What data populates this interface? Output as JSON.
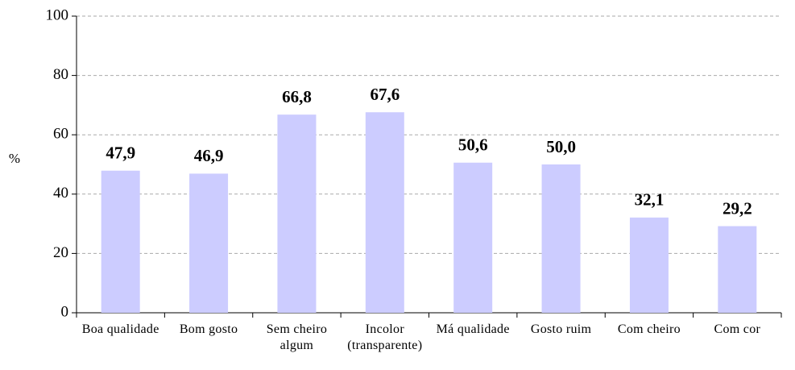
{
  "chart_data": {
    "type": "bar",
    "y_label": "%",
    "categories": [
      "Boa qualidade",
      "Bom gosto",
      "Sem cheiro\nalgum",
      "Incolor\n(transparente)",
      "Má qualidade",
      "Gosto ruim",
      "Com cheiro",
      "Com cor"
    ],
    "values": [
      47.9,
      46.9,
      66.8,
      67.6,
      50.6,
      50.0,
      32.1,
      29.2
    ],
    "value_labels": [
      "47,9",
      "46,9",
      "66,8",
      "67,6",
      "50,6",
      "50,0",
      "32,1",
      "29,2"
    ],
    "color": "#ccccff",
    "ylim": [
      0,
      100
    ],
    "yticks": [
      0,
      20,
      40,
      60,
      80,
      100
    ],
    "grid": true
  }
}
